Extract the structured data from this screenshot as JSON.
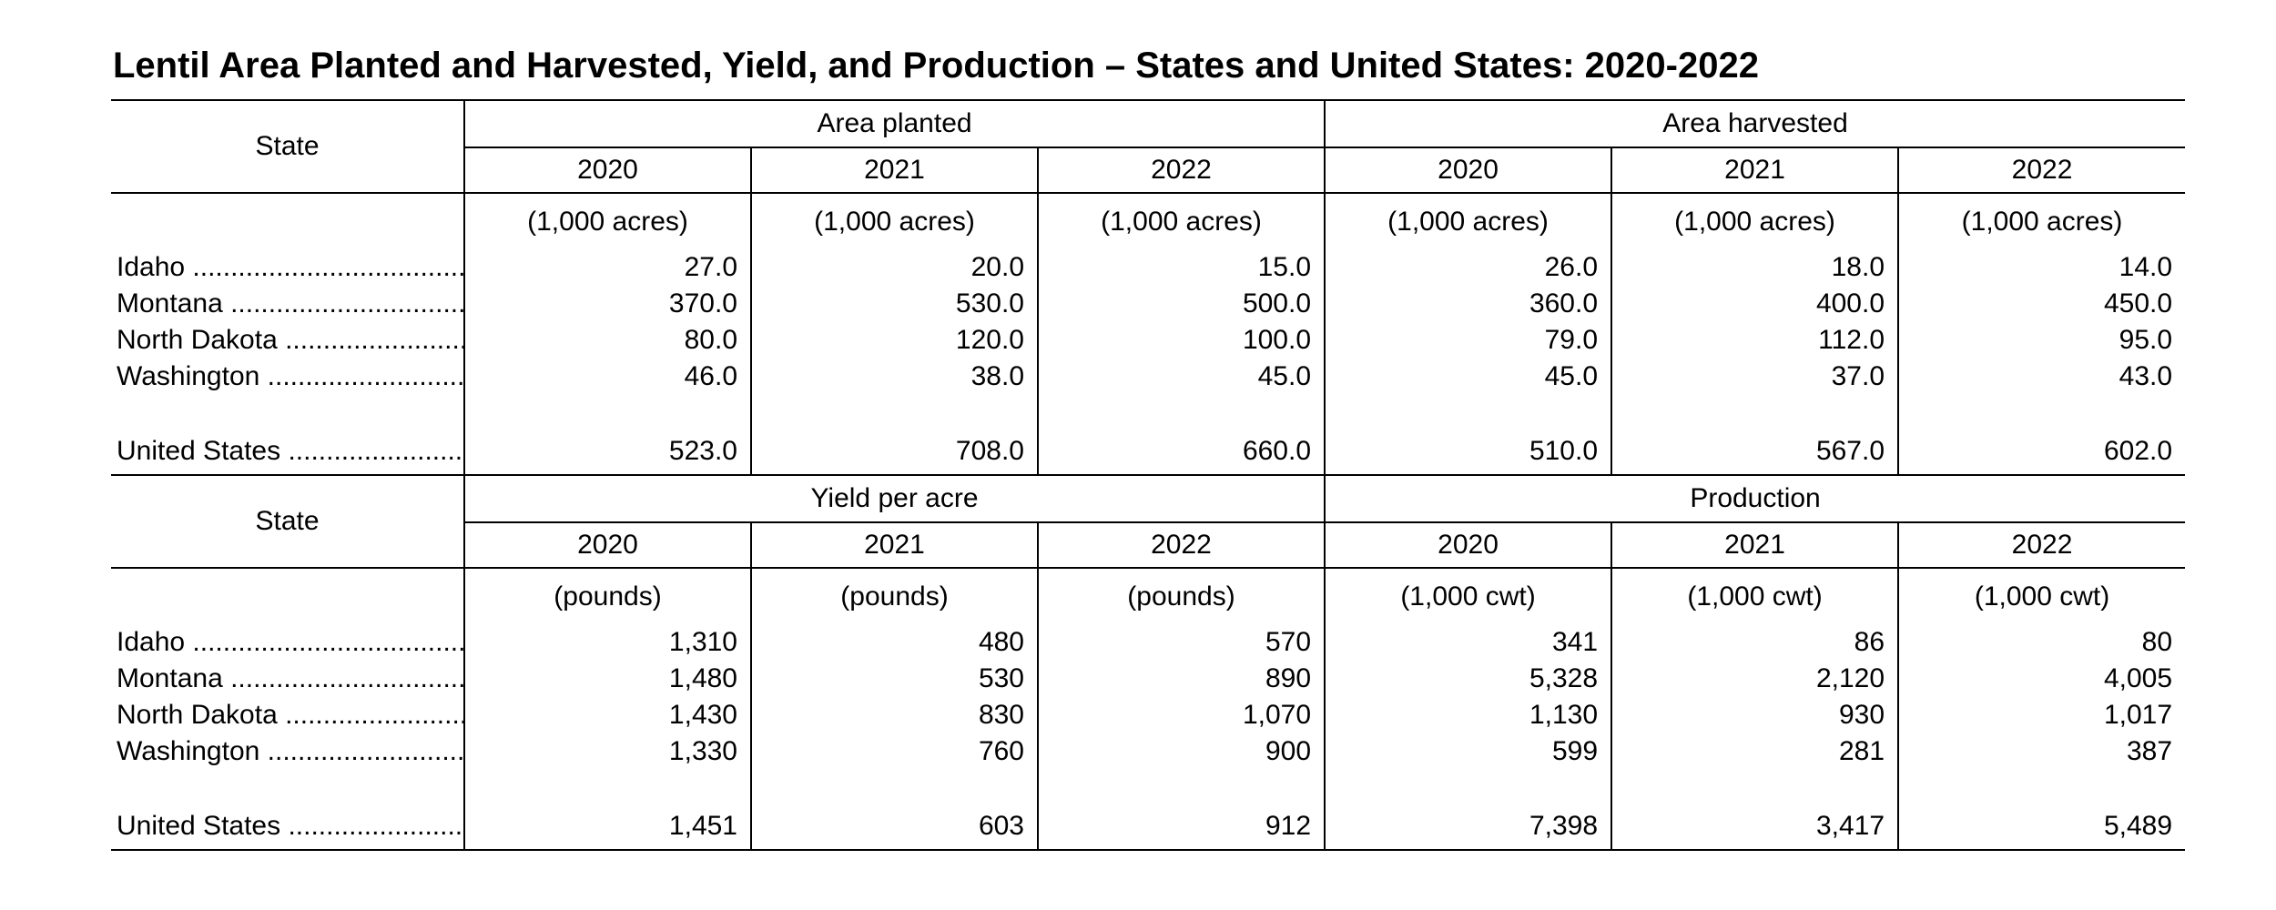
{
  "page": {
    "title": "Lentil Area Planted and Harvested, Yield, and Production – States and United States: 2020-2022"
  },
  "sections": [
    {
      "state_header": "State",
      "group1": "Area planted",
      "group2": "Area harvested",
      "years": [
        "2020",
        "2021",
        "2022",
        "2020",
        "2021",
        "2022"
      ],
      "units": [
        "(1,000 acres)",
        "(1,000 acres)",
        "(1,000 acres)",
        "(1,000 acres)",
        "(1,000 acres)",
        "(1,000 acres)"
      ],
      "rows": [
        {
          "label": "Idaho ....................................",
          "values": [
            "27.0",
            "20.0",
            "15.0",
            "26.0",
            "18.0",
            "14.0"
          ]
        },
        {
          "label": "Montana ...............................",
          "values": [
            "370.0",
            "530.0",
            "500.0",
            "360.0",
            "400.0",
            "450.0"
          ]
        },
        {
          "label": "North Dakota ........................",
          "values": [
            "80.0",
            "120.0",
            "100.0",
            "79.0",
            "112.0",
            "95.0"
          ]
        },
        {
          "label": "Washington ..........................",
          "values": [
            "46.0",
            "38.0",
            "45.0",
            "45.0",
            "37.0",
            "43.0"
          ]
        }
      ],
      "total": {
        "label": "United States .......................",
        "values": [
          "523.0",
          "708.0",
          "660.0",
          "510.0",
          "567.0",
          "602.0"
        ]
      }
    },
    {
      "state_header": "State",
      "group1": "Yield per acre",
      "group2": "Production",
      "years": [
        "2020",
        "2021",
        "2022",
        "2020",
        "2021",
        "2022"
      ],
      "units": [
        "(pounds)",
        "(pounds)",
        "(pounds)",
        "(1,000 cwt)",
        "(1,000 cwt)",
        "(1,000 cwt)"
      ],
      "rows": [
        {
          "label": "Idaho ....................................",
          "values": [
            "1,310",
            "480",
            "570",
            "341",
            "86",
            "80"
          ]
        },
        {
          "label": "Montana ...............................",
          "values": [
            "1,480",
            "530",
            "890",
            "5,328",
            "2,120",
            "4,005"
          ]
        },
        {
          "label": "North Dakota ........................",
          "values": [
            "1,430",
            "830",
            "1,070",
            "1,130",
            "930",
            "1,017"
          ]
        },
        {
          "label": "Washington ..........................",
          "values": [
            "1,330",
            "760",
            "900",
            "599",
            "281",
            "387"
          ]
        }
      ],
      "total": {
        "label": "United States .......................",
        "values": [
          "1,451",
          "603",
          "912",
          "7,398",
          "3,417",
          "5,489"
        ]
      }
    }
  ]
}
